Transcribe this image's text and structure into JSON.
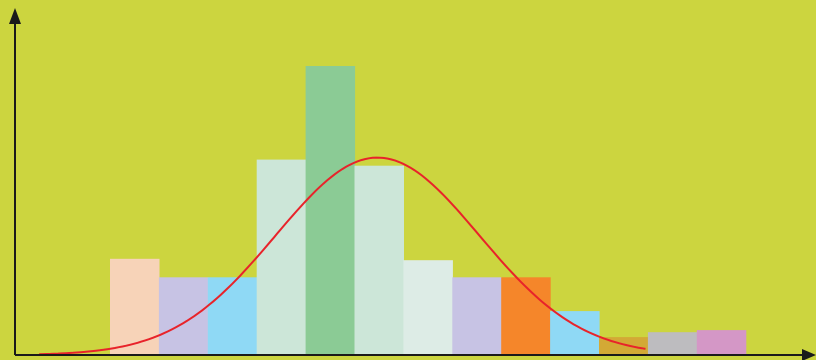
{
  "colors": {
    "background": "#CCD53F",
    "axis": "#1A1A1A",
    "curve": "#E8232A"
  },
  "chart_data": {
    "type": "bar",
    "title": "",
    "xlabel": "",
    "ylabel": "",
    "ylim": [
      0,
      100
    ],
    "grid": false,
    "legend": "none",
    "bins": [
      {
        "value": 33.3,
        "color": "#F7D3B8"
      },
      {
        "value": 26.9,
        "color": "#C7C3E4"
      },
      {
        "value": 26.9,
        "color": "#8FD9F5"
      },
      {
        "value": 67.6,
        "color": "#CCE6D8"
      },
      {
        "value": 100.0,
        "color": "#8BCB95"
      },
      {
        "value": 65.5,
        "color": "#CCE6D8"
      },
      {
        "value": 32.8,
        "color": "#DDECE6"
      },
      {
        "value": 26.9,
        "color": "#C7C3E4"
      },
      {
        "value": 26.9,
        "color": "#F5862A"
      },
      {
        "value": 15.2,
        "color": "#8FD9F5"
      },
      {
        "value": 6.2,
        "color": "#D3A935"
      },
      {
        "value": 7.9,
        "color": "#BDBCBF"
      },
      {
        "value": 8.6,
        "color": "#D497C6"
      }
    ],
    "curve": {
      "type": "normal",
      "peak": 68.3,
      "mean": 5.47,
      "sd": 2.08
    }
  }
}
